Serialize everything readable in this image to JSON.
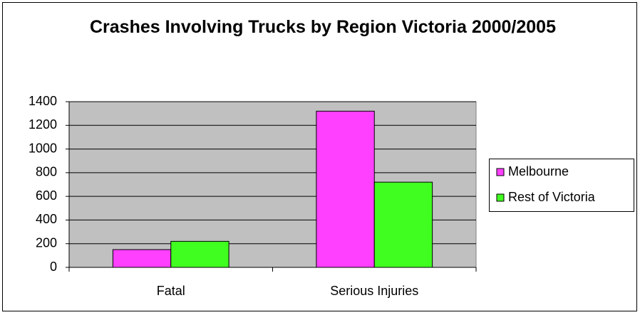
{
  "chart_data": {
    "type": "bar",
    "title": "Crashes Involving Trucks by Region Victoria 2000/2005",
    "categories": [
      "Fatal",
      "Serious Injuries"
    ],
    "series": [
      {
        "name": "Melbourne",
        "color": "#ff40ff",
        "values": [
          150,
          1320
        ]
      },
      {
        "name": "Rest of Victoria",
        "color": "#40ff20",
        "values": [
          220,
          720
        ]
      }
    ],
    "ylim": [
      0,
      1400
    ],
    "yticks": [
      0,
      200,
      400,
      600,
      800,
      1000,
      1200,
      1400
    ],
    "grid": true,
    "legend": "right"
  }
}
